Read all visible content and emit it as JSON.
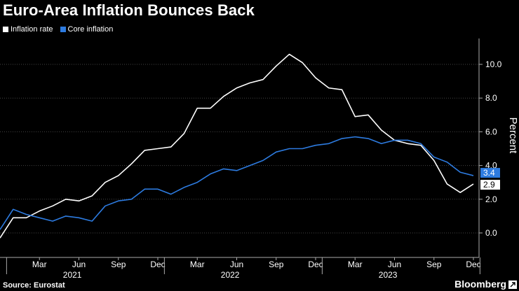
{
  "chart_data": {
    "type": "line",
    "title": "Euro-Area Inflation Bounces Back",
    "ylabel": "Percent",
    "ylim": [
      -1,
      12
    ],
    "yticks": [
      "0.0",
      "2.0",
      "4.0",
      "6.0",
      "8.0",
      "10.0"
    ],
    "ytick_values": [
      0,
      2,
      4,
      6,
      8,
      10
    ],
    "month_labels": [
      "Mar",
      "Jun",
      "Sep",
      "Dec",
      "Mar",
      "Jun",
      "Sep",
      "Dec",
      "Mar",
      "Jun",
      "Sep",
      "Dec"
    ],
    "month_index": [
      2,
      5,
      8,
      11,
      14,
      17,
      20,
      23,
      26,
      29,
      32,
      35
    ],
    "year_labels": [
      "2021",
      "2022",
      "2023"
    ],
    "year_center_index": [
      5,
      17,
      29
    ],
    "x": [
      "2021-01",
      "2021-02",
      "2021-03",
      "2021-04",
      "2021-05",
      "2021-06",
      "2021-07",
      "2021-08",
      "2021-09",
      "2021-10",
      "2021-11",
      "2021-12",
      "2022-01",
      "2022-02",
      "2022-03",
      "2022-04",
      "2022-05",
      "2022-06",
      "2022-07",
      "2022-08",
      "2022-09",
      "2022-10",
      "2022-11",
      "2022-12",
      "2023-01",
      "2023-02",
      "2023-03",
      "2023-04",
      "2023-05",
      "2023-06",
      "2023-07",
      "2023-08",
      "2023-09",
      "2023-10",
      "2023-11",
      "2023-12"
    ],
    "series": [
      {
        "name": "Inflation rate",
        "color": "#ffffff",
        "values": [
          0.9,
          0.9,
          1.3,
          1.6,
          2.0,
          1.9,
          2.2,
          3.0,
          3.4,
          4.1,
          4.9,
          5.0,
          5.1,
          5.9,
          7.4,
          7.4,
          8.1,
          8.6,
          8.9,
          9.1,
          9.9,
          10.6,
          10.1,
          9.2,
          8.6,
          8.5,
          6.9,
          7.0,
          6.1,
          5.5,
          5.3,
          5.2,
          4.3,
          2.9,
          2.4,
          2.9
        ],
        "end_label": "2.9"
      },
      {
        "name": "Core inflation",
        "color": "#2d7be0",
        "values": [
          1.4,
          1.1,
          0.9,
          0.7,
          1.0,
          0.9,
          0.7,
          1.6,
          1.9,
          2.0,
          2.6,
          2.6,
          2.3,
          2.7,
          3.0,
          3.5,
          3.8,
          3.7,
          4.0,
          4.3,
          4.8,
          5.0,
          5.0,
          5.2,
          5.3,
          5.6,
          5.7,
          5.6,
          5.3,
          5.5,
          5.5,
          5.3,
          4.5,
          4.2,
          3.6,
          3.4
        ],
        "end_label": "3.4"
      }
    ],
    "start_point": {
      "month": "2020-12",
      "inflation": -0.3,
      "core": 0.2
    },
    "source": "Source: Eurostat",
    "brand": "Bloomberg"
  }
}
